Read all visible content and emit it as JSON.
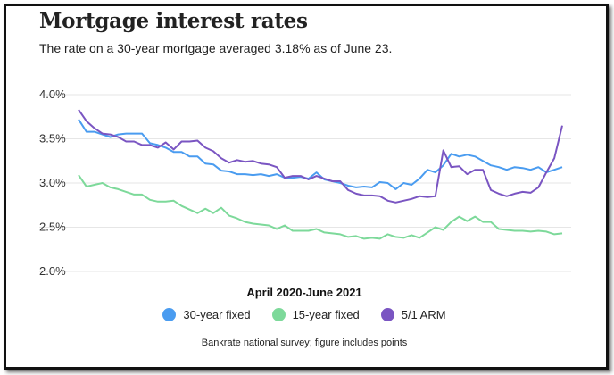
{
  "title": "Mortgage interest rates",
  "subtitle": "The rate on a 30-year mortgage averaged 3.18% as of June 23.",
  "source": "Bankrate national survey; figure includes points",
  "chart_data": {
    "type": "line",
    "title": "Mortgage interest rates",
    "xlabel": "April 2020-June 2021",
    "ylabel": "",
    "ylim": [
      2.0,
      4.0
    ],
    "yticks": [
      "2.0%",
      "2.5%",
      "3.0%",
      "3.5%",
      "4.0%"
    ],
    "ytick_values": [
      2.0,
      2.5,
      3.0,
      3.5,
      4.0
    ],
    "grid": true,
    "legend_position": "bottom",
    "series": [
      {
        "name": "30-year fixed",
        "color": "#4a9cf0",
        "values": [
          3.72,
          3.58,
          3.58,
          3.55,
          3.52,
          3.55,
          3.56,
          3.56,
          3.56,
          3.45,
          3.43,
          3.4,
          3.35,
          3.35,
          3.3,
          3.3,
          3.22,
          3.21,
          3.14,
          3.13,
          3.1,
          3.1,
          3.09,
          3.1,
          3.08,
          3.1,
          3.06,
          3.06,
          3.07,
          3.05,
          3.12,
          3.04,
          3.02,
          3.0,
          2.97,
          2.95,
          2.96,
          2.95,
          3.01,
          3.0,
          2.93,
          3.0,
          2.98,
          3.05,
          3.15,
          3.12,
          3.2,
          3.33,
          3.3,
          3.32,
          3.3,
          3.25,
          3.2,
          3.18,
          3.15,
          3.18,
          3.17,
          3.15,
          3.18,
          3.12,
          3.15,
          3.18
        ]
      },
      {
        "name": "15-year fixed",
        "color": "#7dd99a",
        "values": [
          3.09,
          2.96,
          2.98,
          3.0,
          2.95,
          2.93,
          2.9,
          2.87,
          2.87,
          2.81,
          2.79,
          2.79,
          2.8,
          2.74,
          2.7,
          2.66,
          2.71,
          2.66,
          2.72,
          2.63,
          2.6,
          2.56,
          2.54,
          2.53,
          2.52,
          2.48,
          2.52,
          2.46,
          2.46,
          2.46,
          2.48,
          2.44,
          2.43,
          2.42,
          2.39,
          2.4,
          2.37,
          2.38,
          2.37,
          2.42,
          2.39,
          2.38,
          2.41,
          2.38,
          2.44,
          2.5,
          2.47,
          2.56,
          2.62,
          2.57,
          2.62,
          2.56,
          2.56,
          2.48,
          2.47,
          2.46,
          2.46,
          2.45,
          2.46,
          2.45,
          2.42,
          2.43
        ]
      },
      {
        "name": "5/1 ARM",
        "color": "#7a55c2",
        "values": [
          3.83,
          3.7,
          3.62,
          3.56,
          3.55,
          3.52,
          3.47,
          3.47,
          3.43,
          3.43,
          3.4,
          3.46,
          3.38,
          3.47,
          3.47,
          3.48,
          3.4,
          3.36,
          3.28,
          3.23,
          3.26,
          3.24,
          3.25,
          3.22,
          3.21,
          3.18,
          3.06,
          3.08,
          3.08,
          3.04,
          3.08,
          3.05,
          3.02,
          3.02,
          2.92,
          2.88,
          2.86,
          2.86,
          2.85,
          2.8,
          2.78,
          2.8,
          2.82,
          2.85,
          2.84,
          2.85,
          3.37,
          3.18,
          3.19,
          3.1,
          3.15,
          3.15,
          2.92,
          2.88,
          2.85,
          2.88,
          2.9,
          2.89,
          2.95,
          3.12,
          3.28,
          3.65
        ]
      }
    ]
  }
}
